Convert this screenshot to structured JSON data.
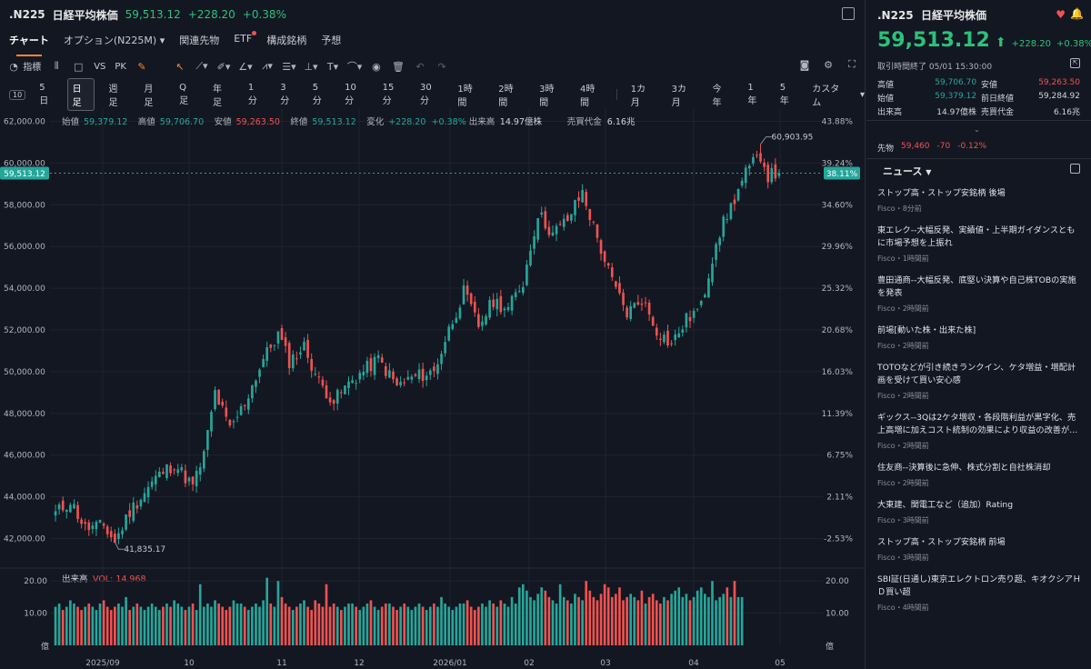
{
  "header": {
    "symbol": ".N225",
    "name": "日経平均株価",
    "price": "59,513.12",
    "change": "+228.20",
    "change_pct": "+0.38%"
  },
  "nav_tabs": [
    "チャート",
    "オプション(N225M)",
    "関連先物",
    "ETF",
    "構成銘柄",
    "予想"
  ],
  "toolbar": {
    "indicator_label": "指標",
    "vs_label": "VS",
    "pk_label": "PK"
  },
  "periods": [
    "5日",
    "日足",
    "週足",
    "月足",
    "Q足",
    "年足",
    "1分",
    "3分",
    "5分",
    "10分",
    "15分",
    "30分",
    "1時間",
    "2時間",
    "3時間",
    "4時間",
    "1カ月",
    "3カ月",
    "今年",
    "1年",
    "5年",
    "カスタム"
  ],
  "active_period": "日足",
  "ohlc_bar": {
    "open_label": "始値",
    "open": "59,379.12",
    "high_label": "高値",
    "high": "59,706.70",
    "low_label": "安値",
    "low": "59,263.50",
    "close_label": "終値",
    "close": "59,513.12",
    "change_label": "変化",
    "change": "+228.20",
    "change_pct": "+0.38%",
    "volume_label": "出来高",
    "volume": "14.97億株",
    "turnover_label": "売買代金",
    "turnover": "6.16兆"
  },
  "volume_panel": {
    "label": "出来高",
    "vol_text": "VOL: 14.968",
    "unit": "億"
  },
  "chart_data": {
    "type": "candlestick",
    "y_ticks": [
      "62,000.00",
      "60,000.00",
      "58,000.00",
      "56,000.00",
      "54,000.00",
      "52,000.00",
      "50,000.00",
      "48,000.00",
      "46,000.00",
      "44,000.00",
      "42,000.00"
    ],
    "pct_ticks": [
      "43.88%",
      "39.24%",
      "34.60%",
      "29.96%",
      "25.32%",
      "20.68%",
      "16.03%",
      "11.39%",
      "6.75%",
      "2.11%",
      "-2.53%"
    ],
    "ylim": [
      40800,
      62500
    ],
    "x_tick_labels": [
      "2025/09",
      "10",
      "11",
      "12",
      "2026/01",
      "02",
      "03",
      "04",
      "05"
    ],
    "last_price_label": "59,513.12",
    "last_pct_label": "38.11%",
    "high_annotation": "60,903.95",
    "low_annotation": "41,835.17",
    "volume_ticks": [
      "20.00",
      "10.00"
    ],
    "anchors": [
      [
        0,
        43200
      ],
      [
        4,
        43800
      ],
      [
        8,
        42500
      ],
      [
        13,
        42600
      ],
      [
        16,
        41835
      ],
      [
        20,
        43300
      ],
      [
        27,
        44900
      ],
      [
        32,
        45600
      ],
      [
        37,
        44500
      ],
      [
        40,
        46000
      ],
      [
        43,
        49000
      ],
      [
        47,
        47200
      ],
      [
        51,
        48500
      ],
      [
        56,
        50600
      ],
      [
        60,
        51800
      ],
      [
        63,
        50500
      ],
      [
        67,
        51200
      ],
      [
        71,
        49500
      ],
      [
        75,
        48600
      ],
      [
        80,
        49600
      ],
      [
        87,
        50600
      ],
      [
        92,
        49300
      ],
      [
        96,
        49700
      ],
      [
        102,
        50000
      ],
      [
        106,
        52000
      ],
      [
        110,
        53800
      ],
      [
        114,
        52200
      ],
      [
        118,
        53400
      ],
      [
        122,
        53000
      ],
      [
        126,
        54300
      ],
      [
        130,
        57600
      ],
      [
        134,
        56600
      ],
      [
        138,
        57300
      ],
      [
        142,
        58600
      ],
      [
        146,
        56400
      ],
      [
        150,
        54300
      ],
      [
        154,
        52800
      ],
      [
        158,
        53500
      ],
      [
        162,
        52000
      ],
      [
        166,
        51300
      ],
      [
        170,
        52500
      ],
      [
        174,
        53100
      ],
      [
        178,
        56300
      ],
      [
        182,
        57900
      ],
      [
        186,
        59500
      ],
      [
        190,
        60400
      ],
      [
        192,
        59400
      ],
      [
        195,
        59513
      ]
    ],
    "volume_values": [
      12,
      13,
      11,
      12,
      14,
      13,
      12,
      11,
      12,
      13,
      12,
      11,
      13,
      14,
      12,
      11,
      12,
      13,
      12,
      15,
      11,
      12,
      13,
      12,
      11,
      12,
      13,
      12,
      11,
      12,
      13,
      12,
      14,
      13,
      12,
      11,
      12,
      13,
      11,
      19,
      12,
      13,
      12,
      14,
      13,
      12,
      11,
      12,
      14,
      13,
      13,
      12,
      11,
      12,
      13,
      12,
      14,
      21,
      13,
      12,
      20,
      15,
      13,
      12,
      11,
      12,
      13,
      14,
      12,
      11,
      14,
      13,
      12,
      19,
      12,
      13,
      12,
      11,
      12,
      13,
      13,
      12,
      11,
      12,
      13,
      14,
      12,
      11,
      12,
      13,
      13,
      12,
      11,
      12,
      13,
      12,
      11,
      12,
      13,
      12,
      11,
      12,
      13,
      12,
      15,
      13,
      12,
      11,
      12,
      13,
      13,
      14,
      12,
      11,
      12,
      13,
      12,
      14,
      13,
      12,
      14,
      13,
      12,
      15,
      13,
      18,
      19,
      17,
      15,
      14,
      16,
      18,
      17,
      15,
      14,
      13,
      19,
      15,
      14,
      13,
      16,
      15,
      14,
      20,
      17,
      15,
      14,
      16,
      19,
      18,
      15,
      16,
      18,
      14,
      15,
      16,
      15,
      14,
      17,
      13,
      15,
      16,
      14,
      13,
      15,
      14,
      16,
      17,
      18,
      15,
      16,
      14,
      15,
      17,
      18,
      16,
      15,
      20,
      14,
      15,
      16,
      18,
      15,
      20,
      15,
      15
    ]
  },
  "right_panel": {
    "symbol": ".N225",
    "name": "日経平均株価",
    "price": "59,513.12",
    "change": "+228.20",
    "change_pct": "+0.38%",
    "status": "取引時間終了 05/01 15:30:00",
    "stats": {
      "high_label": "高値",
      "high": "59,706.70",
      "low_label": "安値",
      "low": "59,263.50",
      "open_label": "始値",
      "open": "59,379.12",
      "prev_label": "前日終値",
      "prev": "59,284.92",
      "vol_label": "出来高",
      "vol": "14.97億株",
      "turnover_label": "売買代金",
      "turnover": "6.16兆"
    },
    "futures_label": "先物",
    "futures_price": "59,460",
    "futures_change": "-70",
    "futures_pct": "-0.12%",
    "news_title": "ニュース",
    "news": [
      {
        "headline": "ストップ高・ストップ安銘柄 後場",
        "meta": "Fisco・8分前"
      },
      {
        "headline": "東エレク--大幅反発、実績値・上半期ガイダンスともに市場予想を上振れ",
        "meta": "Fisco・1時間前"
      },
      {
        "headline": "豊田通商--大幅反発、底堅い決算や自己株TOBの実施を発表",
        "meta": "Fisco・2時間前"
      },
      {
        "headline": "前場[動いた株・出来た株]",
        "meta": "Fisco・2時間前"
      },
      {
        "headline": "TOTOなどが引き続きランクイン、ケタ増益・増配計画を受けて買い安心感",
        "meta": "Fisco・2時間前"
      },
      {
        "headline": "ギックス--3Qは2ケタ増収・各段階利益が黒字化、売上高増に加えコスト統制の効果により収益の改善が…",
        "meta": "Fisco・2時間前"
      },
      {
        "headline": "住友商--決算後に急伸、株式分割と自社株消却",
        "meta": "Fisco・2時間前"
      },
      {
        "headline": "大東建、関電工など（追加）Rating",
        "meta": "Fisco・3時間前"
      },
      {
        "headline": "ストップ高・ストップ安銘柄 前場",
        "meta": "Fisco・3時間前"
      },
      {
        "headline": "SBI証(日通し)東京エレクトロン売り超、キオクシアＨＤ買い超",
        "meta": "Fisco・4時間前"
      }
    ]
  },
  "colors": {
    "up": "#26a69a",
    "down": "#ef5350",
    "accent": "#f5892b",
    "bg": "#131722"
  }
}
